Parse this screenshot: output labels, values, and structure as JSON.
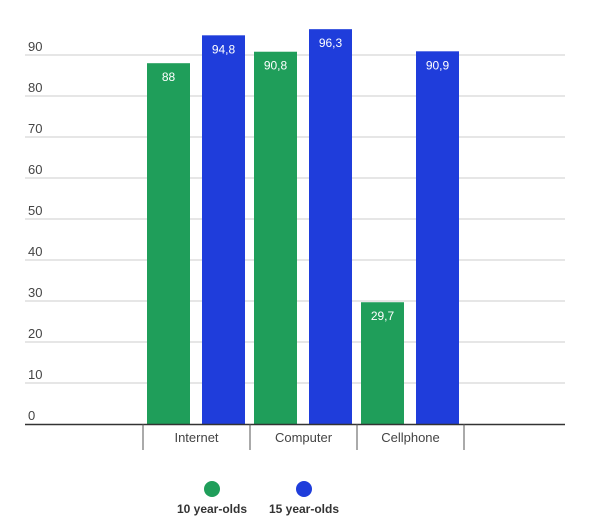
{
  "chart_data": {
    "type": "bar",
    "categories": [
      "Internet",
      "Computer",
      "Cellphone"
    ],
    "series": [
      {
        "name": "10 year-olds",
        "color": "#1f9e5a",
        "values": [
          88,
          90.8,
          29.7
        ],
        "labels": [
          "88",
          "90,8",
          "29,7"
        ]
      },
      {
        "name": "15 year-olds",
        "color": "#1f3ddb",
        "values": [
          94.8,
          96.3,
          90.9
        ],
        "labels": [
          "94,8",
          "96,3",
          "90,9"
        ]
      }
    ],
    "yticks": [
      0,
      10,
      20,
      30,
      40,
      50,
      60,
      70,
      80,
      90
    ],
    "ylim": [
      0,
      100
    ],
    "grid": true,
    "legend": "bottom",
    "title": "",
    "xlabel": "",
    "ylabel": ""
  }
}
